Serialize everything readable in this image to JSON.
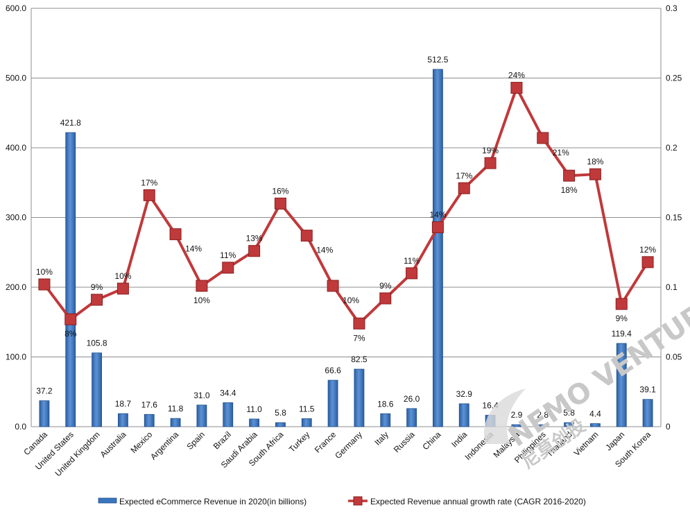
{
  "chart_data": {
    "type": "bar+line",
    "categories": [
      "Canada",
      "United States",
      "United Kingdom",
      "Australia",
      "Mexico",
      "Argentina",
      "Spain",
      "Brazil",
      "Saudi Arabia",
      "South Africa",
      "Turkey",
      "France",
      "Germany",
      "Italy",
      "Russia",
      "China",
      "India",
      "Indonesia",
      "Malaysia",
      "Philippines",
      "Thailand",
      "Vietnam",
      "Japan",
      "South Korea"
    ],
    "series": [
      {
        "name": "Expected eCommerce Revenue in 2020(in billions)",
        "type": "bar",
        "axis": "left",
        "values": [
          37.2,
          421.8,
          105.8,
          18.7,
          17.6,
          11.8,
          31.0,
          34.4,
          11.0,
          5.8,
          11.5,
          66.6,
          82.5,
          18.6,
          26.0,
          512.5,
          32.9,
          16.4,
          2.9,
          2.8,
          5.8,
          4.4,
          119.4,
          39.1
        ],
        "labels": [
          "37.2",
          "421.8",
          "105.8",
          "18.7",
          "17.6",
          "11.8",
          "31.0",
          "34.4",
          "11.0",
          "5.8",
          "11.5",
          "66.6",
          "82.5",
          "18.6",
          "26.0",
          "512.5",
          "32.9",
          "16.4",
          "2.9",
          "2.8",
          "5.8",
          "4.4",
          "119.4",
          "39.1"
        ],
        "color": "#3a75bf"
      },
      {
        "name": "Expected Revenue annual growth rate (CAGR 2016-2020)",
        "type": "line",
        "axis": "right",
        "values": [
          0.102,
          0.077,
          0.091,
          0.099,
          0.166,
          0.138,
          0.101,
          0.114,
          0.126,
          0.16,
          0.137,
          0.101,
          0.074,
          0.092,
          0.11,
          0.143,
          0.171,
          0.189,
          0.243,
          0.207,
          0.18,
          0.181,
          0.088,
          0.118
        ],
        "labels": [
          "10%",
          "8%",
          "9%",
          "10%",
          "17%",
          "14%",
          "10%",
          "11%",
          "13%",
          "16%",
          "14%",
          "10%",
          "7%",
          "9%",
          "11%",
          "14%",
          "17%",
          "19%",
          "24%",
          "21%",
          "18%",
          "18%",
          "9%",
          "12%"
        ],
        "color": "#c0393b"
      }
    ],
    "y_left": {
      "min": 0,
      "max": 600,
      "ticks": [
        "0.0",
        "100.0",
        "200.0",
        "300.0",
        "400.0",
        "500.0",
        "600.0"
      ]
    },
    "y_right": {
      "min": 0,
      "max": 0.3,
      "ticks": [
        "0",
        "0.05",
        "0.1",
        "0.15",
        "0.2",
        "0.25",
        "0.3"
      ]
    },
    "grid": true,
    "legend_position": "bottom"
  },
  "watermark": {
    "text": "NEMO VENTURES",
    "subtext": "尼莫创投"
  }
}
